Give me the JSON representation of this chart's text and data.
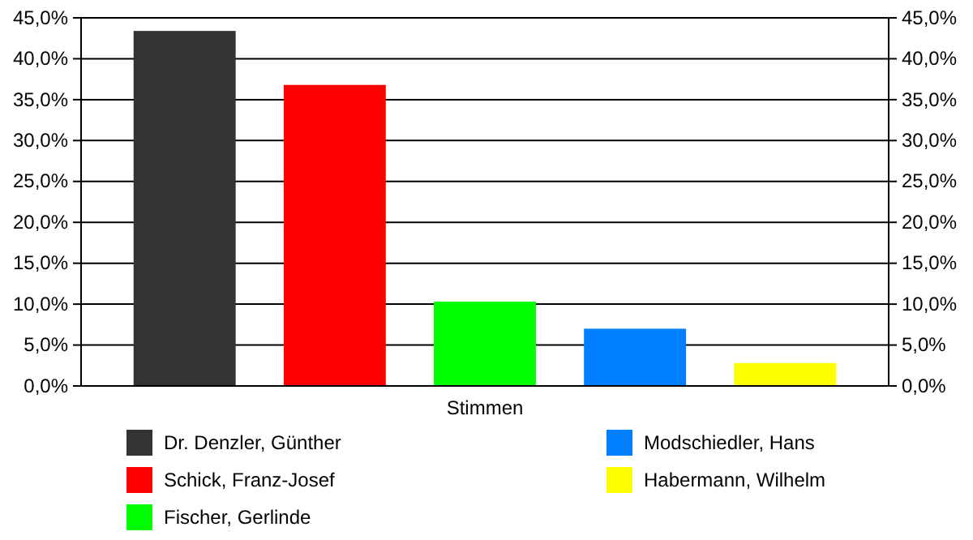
{
  "chart_data": {
    "type": "bar",
    "categories": [
      "Stimmen"
    ],
    "series": [
      {
        "name": "Dr. Denzler, Günther",
        "color": "#333333",
        "values": [
          43.4
        ]
      },
      {
        "name": "Schick, Franz-Josef",
        "color": "#ff0000",
        "values": [
          36.8
        ]
      },
      {
        "name": "Fischer, Gerlinde",
        "color": "#00ff00",
        "values": [
          10.3
        ]
      },
      {
        "name": "Modschiedler, Hans",
        "color": "#0080ff",
        "values": [
          7.0
        ]
      },
      {
        "name": "Habermann, Wilhelm",
        "color": "#ffff00",
        "values": [
          2.8
        ]
      }
    ],
    "ylim": [
      0,
      45
    ],
    "yticks": [
      {
        "value": 0,
        "label": "0,0%"
      },
      {
        "value": 5,
        "label": "5,0%"
      },
      {
        "value": 10,
        "label": "10,0%"
      },
      {
        "value": 15,
        "label": "15,0%"
      },
      {
        "value": 20,
        "label": "20,0%"
      },
      {
        "value": 25,
        "label": "25,0%"
      },
      {
        "value": 30,
        "label": "30,0%"
      },
      {
        "value": 35,
        "label": "35,0%"
      },
      {
        "value": 40,
        "label": "40,0%"
      },
      {
        "value": 45,
        "label": "45,0%"
      }
    ],
    "grid": "y",
    "legend": "bottom"
  }
}
